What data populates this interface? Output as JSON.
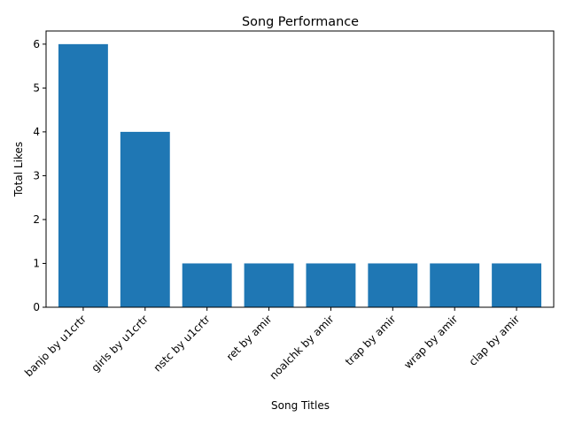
{
  "chart_data": {
    "type": "bar",
    "title": "Song Performance",
    "xlabel": "Song Titles",
    "ylabel": "Total Likes",
    "categories": [
      "banjo by u1crtr",
      "girls by u1crtr",
      "nstc by u1crtr",
      "ret by amir",
      "noalchk by amir",
      "trap by amir",
      "wrap by amir",
      "clap by amir"
    ],
    "values": [
      6,
      4,
      1,
      1,
      1,
      1,
      1,
      1
    ],
    "ylim": [
      0,
      6.3
    ],
    "yticks": [
      0,
      1,
      2,
      3,
      4,
      5,
      6
    ],
    "grid": false,
    "bar_color": "#1f77b4"
  }
}
